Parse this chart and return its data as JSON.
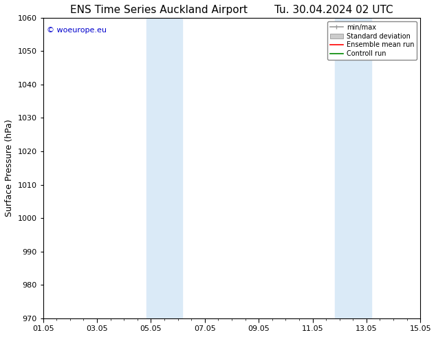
{
  "title_left": "ENS Time Series Auckland Airport",
  "title_right": "Tu. 30.04.2024 02 UTC",
  "ylabel": "Surface Pressure (hPa)",
  "ylim": [
    970,
    1060
  ],
  "yticks": [
    970,
    980,
    990,
    1000,
    1010,
    1020,
    1030,
    1040,
    1050,
    1060
  ],
  "xlim": [
    0,
    14
  ],
  "xtick_labels": [
    "01.05",
    "03.05",
    "05.05",
    "07.05",
    "09.05",
    "11.05",
    "13.05",
    "15.05"
  ],
  "xtick_positions": [
    0,
    2,
    4,
    6,
    8,
    10,
    12,
    14
  ],
  "shaded_bands": [
    {
      "start": 3.83,
      "end": 4.5
    },
    {
      "start": 4.5,
      "end": 5.17
    },
    {
      "start": 10.83,
      "end": 11.5
    },
    {
      "start": 11.5,
      "end": 12.17
    }
  ],
  "shade_color": "#daeaf7",
  "shade_alpha": 1.0,
  "watermark_text": "© woeurope.eu",
  "watermark_color": "#0000cc",
  "legend_items": [
    {
      "label": "min/max",
      "color": "#999999",
      "lw": 1.2
    },
    {
      "label": "Standard deviation",
      "color": "#cccccc",
      "lw": 5
    },
    {
      "label": "Ensemble mean run",
      "color": "#ff0000",
      "lw": 1.2
    },
    {
      "label": "Controll run",
      "color": "#008800",
      "lw": 1.2
    }
  ],
  "bg_color": "#ffffff",
  "title_fontsize": 11,
  "axis_fontsize": 9,
  "tick_fontsize": 8,
  "watermark_fontsize": 8,
  "legend_fontsize": 7
}
